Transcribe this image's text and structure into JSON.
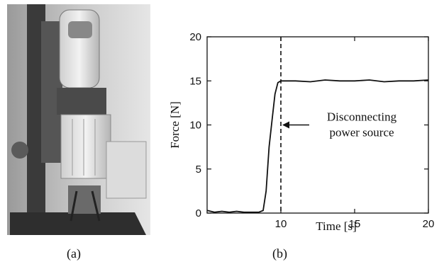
{
  "captions": {
    "a": "(a)",
    "b": "(b)"
  },
  "photo": {
    "description_icon": "robot-arm-photo"
  },
  "chart_data": {
    "type": "line",
    "title": "",
    "xlabel": "Time [s]",
    "ylabel": "Force [N]",
    "xlim": [
      5,
      20
    ],
    "ylim": [
      0,
      20
    ],
    "xticks": [
      10,
      15,
      20
    ],
    "yticks": [
      0,
      5,
      10,
      15,
      20
    ],
    "grid": false,
    "series": [
      {
        "x": [
          5.0,
          5.5,
          6.0,
          6.5,
          7.0,
          7.5,
          8.0,
          8.5,
          8.8,
          9.0,
          9.2,
          9.4,
          9.6,
          9.8,
          10.0,
          10.5,
          11.0,
          12.0,
          13.0,
          14.0,
          15.0,
          16.0,
          17.0,
          18.0,
          19.0,
          20.0
        ],
        "y": [
          0.3,
          0.1,
          0.2,
          0.1,
          0.2,
          0.1,
          0.1,
          0.1,
          0.3,
          2.5,
          7.5,
          10.5,
          13.5,
          14.8,
          15.0,
          15.0,
          15.0,
          14.9,
          15.1,
          15.0,
          15.0,
          15.1,
          14.9,
          15.0,
          15.0,
          15.1
        ]
      }
    ],
    "vline": {
      "x": 10,
      "style": "dashed"
    },
    "annotation": {
      "line1": "Disconnecting",
      "line2": "power source",
      "arrow_to": {
        "x": 10,
        "y": 10
      }
    }
  }
}
